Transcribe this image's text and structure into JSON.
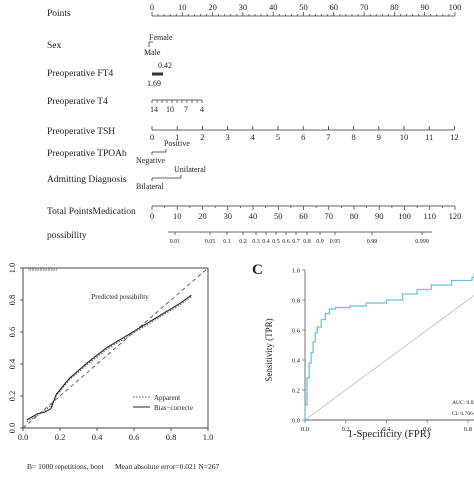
{
  "chart_data": [
    {
      "type": "nomogram",
      "rows": [
        {
          "label": "Points",
          "ticks": [
            0,
            10,
            20,
            30,
            40,
            50,
            60,
            70,
            80,
            90,
            100
          ]
        },
        {
          "label": "Sex",
          "ticks": [
            "Female",
            "Male"
          ]
        },
        {
          "label": "Preoperative FT4",
          "ticks": [
            "0.42",
            "1.69"
          ]
        },
        {
          "label": "Preoperative T4",
          "ticks": [
            "14",
            "10",
            "7",
            "4"
          ]
        },
        {
          "label": "Preoperative TSH",
          "ticks": [
            0,
            1,
            2,
            3,
            4,
            5,
            6,
            7,
            8,
            9,
            10,
            11,
            12
          ]
        },
        {
          "label": "Preoperative TPOAb",
          "ticks": [
            "Positive",
            "Negative"
          ]
        },
        {
          "label": "Admitting Diagnosis",
          "ticks": [
            "Unilateral",
            "Bilateral"
          ]
        },
        {
          "label": "Total PointsMedication",
          "ticks": [
            0,
            10,
            20,
            30,
            40,
            50,
            60,
            70,
            80,
            90,
            100,
            110,
            120
          ]
        },
        {
          "label": "possibility",
          "ticks": [
            "0.01",
            "0.05",
            "0.1",
            "0.2",
            "0.3",
            "0.4",
            "0.5",
            "0.6",
            "0.7",
            "0.8",
            "0.9",
            "0.95",
            "0.99",
            "0.999"
          ]
        }
      ]
    },
    {
      "type": "line",
      "xlabel": "Predicted possibility",
      "xlim": [
        0,
        1
      ],
      "ylim": [
        0,
        1
      ],
      "xticks": [
        "0.0",
        "0.2",
        "0.4",
        "0.6",
        "0.8",
        "1.0"
      ],
      "yticks": [
        "0.0",
        "0.2",
        "0.4",
        "0.6",
        "0.8",
        "1.0"
      ],
      "legend": [
        "Apparent",
        "Bias−correcte"
      ],
      "footnote_left": "B= 1000 repetitions, boot",
      "footnote_right": "Mean absolute error=0.021  N=267",
      "series": [
        {
          "name": "Apparent",
          "x": [
            0.02,
            0.08,
            0.12,
            0.15,
            0.18,
            0.25,
            0.35,
            0.45,
            0.55,
            0.65,
            0.75,
            0.85,
            0.91
          ],
          "y": [
            0.04,
            0.08,
            0.11,
            0.14,
            0.2,
            0.3,
            0.4,
            0.49,
            0.56,
            0.63,
            0.7,
            0.77,
            0.82
          ]
        },
        {
          "name": "Bias−correcte",
          "x": [
            0.02,
            0.08,
            0.12,
            0.15,
            0.18,
            0.25,
            0.35,
            0.45,
            0.55,
            0.65,
            0.75,
            0.85,
            0.91
          ],
          "y": [
            0.05,
            0.09,
            0.1,
            0.12,
            0.21,
            0.31,
            0.41,
            0.5,
            0.57,
            0.64,
            0.71,
            0.78,
            0.83
          ]
        },
        {
          "name": "ideal",
          "x": [
            0,
            1
          ],
          "y": [
            0,
            1
          ]
        }
      ]
    },
    {
      "type": "line",
      "panel_label": "C",
      "xlabel": "1-Specificity (FPR)",
      "ylabel": "Sensitivity (TPR)",
      "xlim": [
        0,
        1
      ],
      "ylim": [
        0,
        1
      ],
      "xticks": [
        "0.0",
        "0.2",
        "0.4",
        "0.6",
        "0.8"
      ],
      "yticks": [
        "0.0",
        "0.2",
        "0.4",
        "0.6",
        "0.8",
        "1.0"
      ],
      "auc_text": "AUC: 0.82",
      "ci_text": "CI: 0.766-",
      "roc_x": [
        0,
        0,
        0.01,
        0.01,
        0.02,
        0.02,
        0.03,
        0.03,
        0.04,
        0.04,
        0.05,
        0.05,
        0.06,
        0.06,
        0.08,
        0.08,
        0.1,
        0.1,
        0.12,
        0.12,
        0.15,
        0.15,
        0.22,
        0.22,
        0.3,
        0.3,
        0.4,
        0.4,
        0.48,
        0.48,
        0.55,
        0.55,
        0.62,
        0.62,
        0.72,
        0.72,
        0.82,
        0.82,
        0.9,
        0.9,
        1.0
      ],
      "roc_y": [
        0,
        0.1,
        0.1,
        0.28,
        0.28,
        0.38,
        0.38,
        0.45,
        0.45,
        0.52,
        0.52,
        0.58,
        0.58,
        0.62,
        0.62,
        0.67,
        0.67,
        0.71,
        0.71,
        0.74,
        0.74,
        0.75,
        0.75,
        0.76,
        0.76,
        0.78,
        0.78,
        0.8,
        0.8,
        0.84,
        0.84,
        0.87,
        0.87,
        0.9,
        0.9,
        0.93,
        0.93,
        0.95,
        0.95,
        0.98,
        0.98
      ]
    }
  ]
}
